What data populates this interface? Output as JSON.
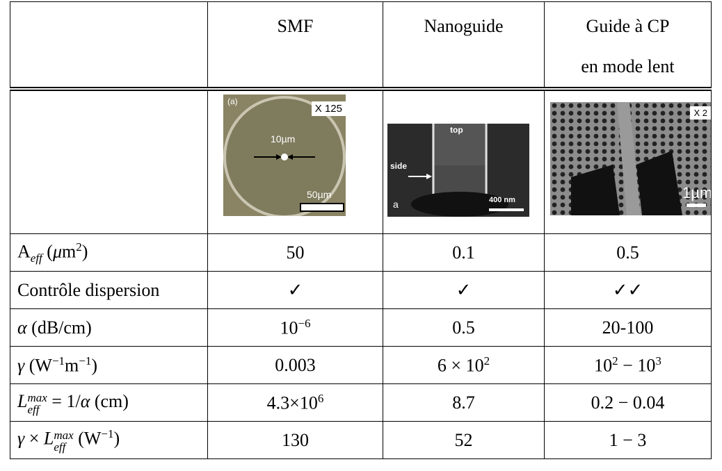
{
  "table": {
    "columns": [
      "SMF",
      "Nanoguide",
      [
        "Guide à CP",
        "en mode lent"
      ]
    ],
    "images": [
      {
        "labels": [
          "(a)",
          "X 125",
          "10µm",
          "50µm"
        ]
      },
      {
        "labels": [
          "top",
          "side",
          "a",
          "400 nm"
        ]
      },
      {
        "labels": [
          "X 2",
          "1µm"
        ]
      }
    ],
    "rows": [
      {
        "label": [
          {
            "text": "A"
          },
          {
            "sub": "eff",
            "italic": true
          },
          {
            "text": " ("
          },
          {
            "text": "μ",
            "italic": true
          },
          {
            "text": "m"
          },
          {
            "sup": "2"
          },
          {
            "text": ")"
          }
        ],
        "cells": [
          [
            {
              "text": "50"
            }
          ],
          [
            {
              "text": "0.1"
            }
          ],
          [
            {
              "text": "0.5"
            }
          ]
        ]
      },
      {
        "label": [
          {
            "text": "Contrôle dispersion"
          }
        ],
        "cells": [
          [
            {
              "text": "✓"
            }
          ],
          [
            {
              "text": "✓"
            }
          ],
          [
            {
              "text": "✓✓"
            }
          ]
        ]
      },
      {
        "label": [
          {
            "text": "α",
            "italic": true
          },
          {
            "text": " (dB/cm)"
          }
        ],
        "cells": [
          [
            {
              "text": "10"
            },
            {
              "sup": "−6"
            }
          ],
          [
            {
              "text": "0.5"
            }
          ],
          [
            {
              "text": "20-100"
            }
          ]
        ]
      },
      {
        "label": [
          {
            "text": "γ",
            "italic": true
          },
          {
            "text": " (W"
          },
          {
            "sup": "−1"
          },
          {
            "text": "m"
          },
          {
            "sup": "−1"
          },
          {
            "text": ")"
          }
        ],
        "cells": [
          [
            {
              "text": "0.003"
            }
          ],
          [
            {
              "text": "6 × 10"
            },
            {
              "sup": "2"
            }
          ],
          [
            {
              "text": "10"
            },
            {
              "sup": "2"
            },
            {
              "text": " − 10"
            },
            {
              "sup": "3"
            }
          ]
        ]
      },
      {
        "label": [
          {
            "text": "L",
            "italic": true
          },
          {
            "sub": "eff",
            "sup": "max",
            "italic": true
          },
          {
            "text": " = 1/"
          },
          {
            "text": "α",
            "italic": true
          },
          {
            "text": " (cm)"
          }
        ],
        "cells": [
          [
            {
              "text": "4.3×10"
            },
            {
              "sup": "6"
            }
          ],
          [
            {
              "text": "8.7"
            }
          ],
          [
            {
              "text": "0.2 − 0.04"
            }
          ]
        ]
      },
      {
        "label": [
          {
            "text": "γ",
            "italic": true
          },
          {
            "text": " × "
          },
          {
            "text": "L",
            "italic": true
          },
          {
            "sub": "eff",
            "sup": "max",
            "italic": true
          },
          {
            "text": " (W"
          },
          {
            "sup": "−1"
          },
          {
            "text": ")"
          }
        ],
        "cells": [
          [
            {
              "text": "130"
            }
          ],
          [
            {
              "text": "52"
            }
          ],
          [
            {
              "text": "1 − 3"
            }
          ]
        ]
      }
    ]
  }
}
